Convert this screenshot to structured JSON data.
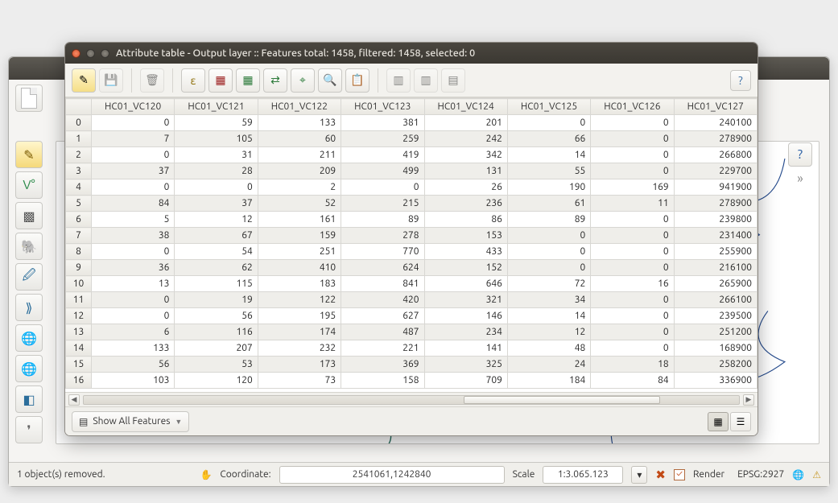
{
  "attribute_window": {
    "title": "Attribute table - Output layer :: Features total: 1458, filtered: 1458, selected: 0",
    "help": "?",
    "filter_label": "Show All Features",
    "columns": [
      "HC01_VC120",
      "HC01_VC121",
      "HC01_VC122",
      "HC01_VC123",
      "HC01_VC124",
      "HC01_VC125",
      "HC01_VC126",
      "HC01_VC127"
    ],
    "rows": [
      [
        0,
        59,
        133,
        381,
        201,
        0,
        0,
        240100
      ],
      [
        7,
        105,
        60,
        259,
        242,
        66,
        0,
        278900
      ],
      [
        0,
        31,
        211,
        419,
        342,
        14,
        0,
        266800
      ],
      [
        37,
        28,
        209,
        499,
        131,
        55,
        0,
        229700
      ],
      [
        0,
        0,
        2,
        0,
        26,
        190,
        169,
        941900
      ],
      [
        84,
        37,
        52,
        215,
        236,
        61,
        11,
        278900
      ],
      [
        5,
        12,
        161,
        89,
        86,
        89,
        0,
        239800
      ],
      [
        38,
        67,
        159,
        278,
        153,
        0,
        0,
        231400
      ],
      [
        0,
        54,
        251,
        770,
        433,
        0,
        0,
        255900
      ],
      [
        36,
        62,
        410,
        624,
        152,
        0,
        0,
        216100
      ],
      [
        13,
        115,
        183,
        841,
        646,
        72,
        16,
        265900
      ],
      [
        0,
        19,
        122,
        420,
        321,
        34,
        0,
        266100
      ],
      [
        0,
        56,
        195,
        627,
        146,
        14,
        0,
        239500
      ],
      [
        6,
        116,
        174,
        487,
        234,
        12,
        0,
        251200
      ],
      [
        133,
        207,
        232,
        221,
        141,
        48,
        0,
        168900
      ],
      [
        56,
        53,
        173,
        369,
        325,
        24,
        18,
        258200
      ],
      [
        103,
        120,
        73,
        158,
        709,
        184,
        84,
        336900
      ]
    ]
  },
  "statusbar": {
    "message": "1 object(s) removed.",
    "coordinate_label": "Coordinate:",
    "coordinate": "2541061,1242840",
    "scale_label": "Scale",
    "scale": "1:3.065.123",
    "render_label": "Render",
    "crs": "EPSG:2927"
  },
  "icons": {
    "pencil": "✎",
    "save": "💾",
    "epsilon": "ε",
    "zoom": "🔍",
    "layers": "▦"
  }
}
